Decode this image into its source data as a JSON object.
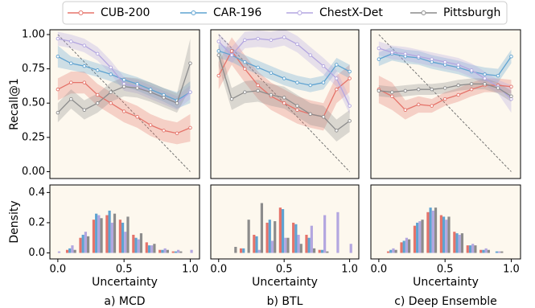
{
  "chart_data": [
    {
      "type": "line",
      "ylabel": "Recall@1",
      "x": [
        0.0,
        0.1,
        0.2,
        0.3,
        0.4,
        0.5,
        0.6,
        0.7,
        0.8,
        0.9,
        1.0
      ],
      "xlim": [
        -0.06,
        1.07
      ],
      "ylim": [
        -0.05,
        1.035
      ],
      "yticks": [
        {
          "value": 0,
          "label": "0.00"
        },
        {
          "value": 0.25,
          "label": "0.25"
        },
        {
          "value": 0.5,
          "label": "0.50"
        },
        {
          "value": 0.75,
          "label": "0.75"
        },
        {
          "value": 1,
          "label": "1.00"
        }
      ],
      "reference_line": {
        "x": [
          0,
          1
        ],
        "y": [
          1,
          0
        ]
      },
      "series": [
        {
          "name": "CUB-200",
          "color": "#e5736a",
          "values": [
            0.6,
            0.65,
            0.65,
            0.56,
            0.5,
            0.44,
            0.4,
            0.34,
            0.3,
            0.28,
            0.32
          ],
          "lower": [
            0.52,
            0.57,
            0.57,
            0.48,
            0.42,
            0.36,
            0.32,
            0.26,
            0.22,
            0.2,
            0.22
          ],
          "upper": [
            0.68,
            0.73,
            0.73,
            0.64,
            0.58,
            0.52,
            0.48,
            0.42,
            0.38,
            0.36,
            0.42
          ]
        },
        {
          "name": "CAR-196",
          "color": "#5fa3d1",
          "values": [
            0.84,
            0.79,
            0.77,
            0.74,
            0.71,
            0.67,
            0.64,
            0.6,
            0.56,
            0.52,
            0.58
          ],
          "lower": [
            0.76,
            0.74,
            0.72,
            0.69,
            0.66,
            0.62,
            0.59,
            0.55,
            0.51,
            0.46,
            0.5
          ],
          "upper": [
            0.92,
            0.84,
            0.82,
            0.79,
            0.76,
            0.72,
            0.69,
            0.65,
            0.61,
            0.58,
            0.66
          ]
        },
        {
          "name": "ChestX-Det",
          "color": "#b3a6e0",
          "values": [
            0.97,
            0.95,
            0.92,
            0.86,
            0.76,
            0.64,
            0.62,
            0.58,
            0.54,
            0.5,
            0.58
          ],
          "lower": [
            0.92,
            0.9,
            0.87,
            0.81,
            0.71,
            0.59,
            0.57,
            0.53,
            0.49,
            0.45,
            0.53
          ],
          "upper": [
            1.02,
            1.0,
            0.97,
            0.91,
            0.81,
            0.69,
            0.67,
            0.63,
            0.59,
            0.55,
            0.63
          ]
        },
        {
          "name": "Pittsburgh",
          "color": "#8c8c8c",
          "values": [
            0.43,
            0.53,
            0.45,
            0.5,
            0.58,
            0.62,
            0.61,
            0.58,
            0.54,
            0.5,
            0.79
          ],
          "lower": [
            0.36,
            0.46,
            0.38,
            0.43,
            0.51,
            0.55,
            0.54,
            0.51,
            0.47,
            0.43,
            0.61
          ],
          "upper": [
            0.5,
            0.6,
            0.52,
            0.57,
            0.65,
            0.69,
            0.68,
            0.65,
            0.61,
            0.57,
            0.97
          ]
        }
      ]
    },
    {
      "type": "line",
      "x": [
        0.0,
        0.1,
        0.2,
        0.3,
        0.4,
        0.5,
        0.6,
        0.7,
        0.8,
        0.9,
        1.0
      ],
      "xlim": [
        -0.06,
        1.07
      ],
      "ylim": [
        -0.05,
        1.035
      ],
      "reference_line": {
        "x": [
          0,
          1
        ],
        "y": [
          1,
          0
        ]
      },
      "series": [
        {
          "name": "CUB-200",
          "color": "#e5736a",
          "values": [
            0.7,
            0.88,
            0.75,
            0.63,
            0.55,
            0.5,
            0.45,
            0.42,
            0.4,
            0.6,
            0.68
          ],
          "lower": [
            0.6,
            0.78,
            0.65,
            0.53,
            0.45,
            0.4,
            0.35,
            0.32,
            0.3,
            0.5,
            0.58
          ],
          "upper": [
            0.8,
            0.98,
            0.85,
            0.73,
            0.65,
            0.6,
            0.55,
            0.52,
            0.5,
            0.7,
            0.78
          ]
        },
        {
          "name": "CAR-196",
          "color": "#5fa3d1",
          "values": [
            0.88,
            0.85,
            0.8,
            0.76,
            0.72,
            0.68,
            0.65,
            0.63,
            0.65,
            0.78,
            0.73
          ],
          "lower": [
            0.83,
            0.8,
            0.75,
            0.71,
            0.67,
            0.63,
            0.6,
            0.58,
            0.6,
            0.73,
            0.68
          ],
          "upper": [
            0.93,
            0.9,
            0.85,
            0.81,
            0.77,
            0.73,
            0.7,
            0.68,
            0.7,
            0.83,
            0.78
          ]
        },
        {
          "name": "ChestX-Det",
          "color": "#b3a6e0",
          "values": [
            0.95,
            0.85,
            0.96,
            0.97,
            0.96,
            0.98,
            0.93,
            0.85,
            0.77,
            0.68,
            0.48
          ],
          "lower": [
            0.89,
            0.79,
            0.9,
            0.91,
            0.9,
            0.92,
            0.87,
            0.79,
            0.71,
            0.62,
            0.42
          ],
          "upper": [
            1.01,
            0.91,
            1.02,
            1.03,
            1.02,
            1.04,
            0.99,
            0.91,
            0.83,
            0.74,
            0.54
          ]
        },
        {
          "name": "Pittsburgh",
          "color": "#8c8c8c",
          "values": [
            0.85,
            0.53,
            0.58,
            0.59,
            0.56,
            0.54,
            0.48,
            0.42,
            0.4,
            0.3,
            0.37
          ],
          "lower": [
            0.77,
            0.45,
            0.5,
            0.51,
            0.48,
            0.46,
            0.4,
            0.34,
            0.32,
            0.22,
            0.29
          ],
          "upper": [
            0.93,
            0.61,
            0.66,
            0.67,
            0.64,
            0.62,
            0.56,
            0.5,
            0.48,
            0.38,
            0.45
          ]
        }
      ]
    },
    {
      "type": "line",
      "x": [
        0.0,
        0.1,
        0.2,
        0.3,
        0.4,
        0.5,
        0.6,
        0.7,
        0.8,
        0.9,
        1.0
      ],
      "xlim": [
        -0.06,
        1.07
      ],
      "ylim": [
        -0.05,
        1.035
      ],
      "reference_line": {
        "x": [
          0,
          1
        ],
        "y": [
          1,
          0
        ]
      },
      "series": [
        {
          "name": "CUB-200",
          "color": "#e5736a",
          "values": [
            0.6,
            0.55,
            0.45,
            0.49,
            0.48,
            0.53,
            0.56,
            0.6,
            0.63,
            0.63,
            0.62
          ],
          "lower": [
            0.5,
            0.45,
            0.38,
            0.43,
            0.43,
            0.48,
            0.51,
            0.55,
            0.58,
            0.58,
            0.57
          ],
          "upper": [
            0.7,
            0.65,
            0.52,
            0.55,
            0.53,
            0.58,
            0.61,
            0.65,
            0.68,
            0.68,
            0.67
          ]
        },
        {
          "name": "CAR-196",
          "color": "#5fa3d1",
          "values": [
            0.82,
            0.86,
            0.84,
            0.83,
            0.8,
            0.78,
            0.76,
            0.73,
            0.71,
            0.7,
            0.84
          ],
          "lower": [
            0.77,
            0.81,
            0.79,
            0.78,
            0.75,
            0.73,
            0.71,
            0.68,
            0.66,
            0.65,
            0.79
          ],
          "upper": [
            0.87,
            0.91,
            0.89,
            0.88,
            0.85,
            0.83,
            0.81,
            0.78,
            0.76,
            0.75,
            0.89
          ]
        },
        {
          "name": "ChestX-Det",
          "color": "#b3a6e0",
          "values": [
            0.9,
            0.87,
            0.86,
            0.84,
            0.82,
            0.8,
            0.78,
            0.74,
            0.68,
            0.62,
            0.53
          ],
          "lower": [
            0.85,
            0.82,
            0.81,
            0.79,
            0.77,
            0.75,
            0.73,
            0.69,
            0.63,
            0.57,
            0.43
          ],
          "upper": [
            0.95,
            0.92,
            0.91,
            0.89,
            0.87,
            0.85,
            0.83,
            0.79,
            0.73,
            0.67,
            0.63
          ]
        },
        {
          "name": "Pittsburgh",
          "color": "#8c8c8c",
          "values": [
            0.59,
            0.58,
            0.59,
            0.6,
            0.6,
            0.61,
            0.63,
            0.64,
            0.64,
            0.61,
            0.55
          ],
          "lower": [
            0.55,
            0.54,
            0.55,
            0.56,
            0.56,
            0.57,
            0.59,
            0.6,
            0.6,
            0.57,
            0.51
          ],
          "upper": [
            0.63,
            0.62,
            0.63,
            0.64,
            0.64,
            0.65,
            0.67,
            0.68,
            0.68,
            0.65,
            0.59
          ]
        }
      ]
    },
    {
      "type": "bar",
      "ylabel": "Density",
      "xlabel": "Uncertainty",
      "caption": "a) MCD",
      "x": [
        0.0,
        0.1,
        0.2,
        0.3,
        0.4,
        0.5,
        0.6,
        0.7,
        0.8,
        0.9,
        1.0
      ],
      "xlim": [
        -0.06,
        1.07
      ],
      "ylim": [
        -0.04,
        0.45
      ],
      "xticks": [
        {
          "value": 0,
          "label": "0.0"
        },
        {
          "value": 0.5,
          "label": "0.5"
        },
        {
          "value": 1,
          "label": "1.0"
        }
      ],
      "yticks": [
        {
          "value": 0,
          "label": "0.0"
        },
        {
          "value": 0.2,
          "label": "0.2"
        },
        {
          "value": 0.4,
          "label": "0.4"
        }
      ],
      "series": [
        {
          "name": "CUB-200",
          "color": "#e5736a",
          "values": [
            0.0,
            0.02,
            0.1,
            0.22,
            0.25,
            0.22,
            0.12,
            0.07,
            0.02,
            0.01,
            0.0
          ]
        },
        {
          "name": "CAR-196",
          "color": "#5fa3d1",
          "values": [
            0.0,
            0.03,
            0.12,
            0.26,
            0.28,
            0.2,
            0.1,
            0.05,
            0.02,
            0.01,
            0.0
          ]
        },
        {
          "name": "ChestX-Det",
          "color": "#b3a6e0",
          "values": [
            0.01,
            0.05,
            0.14,
            0.25,
            0.2,
            0.14,
            0.09,
            0.05,
            0.03,
            0.02,
            0.02
          ]
        },
        {
          "name": "Pittsburgh",
          "color": "#8c8c8c",
          "values": [
            0.0,
            0.02,
            0.11,
            0.23,
            0.26,
            0.24,
            0.13,
            0.06,
            0.02,
            0.01,
            0.0
          ]
        }
      ]
    },
    {
      "type": "bar",
      "xlabel": "Uncertainty",
      "caption": "b) BTL",
      "x": [
        0.0,
        0.1,
        0.2,
        0.3,
        0.4,
        0.5,
        0.6,
        0.7,
        0.8,
        0.9,
        1.0
      ],
      "xlim": [
        -0.06,
        1.07
      ],
      "ylim": [
        -0.04,
        0.45
      ],
      "xticks": [
        {
          "value": 0,
          "label": "0.0"
        },
        {
          "value": 0.5,
          "label": "0.5"
        },
        {
          "value": 1,
          "label": "1.0"
        }
      ],
      "series": [
        {
          "name": "CUB-200",
          "color": "#e5736a",
          "values": [
            0.0,
            0.0,
            0.03,
            0.12,
            0.2,
            0.3,
            0.2,
            0.12,
            0.02,
            0.0,
            0.0
          ]
        },
        {
          "name": "CAR-196",
          "color": "#5fa3d1",
          "values": [
            0.0,
            0.0,
            0.03,
            0.11,
            0.22,
            0.29,
            0.19,
            0.1,
            0.02,
            0.0,
            0.0
          ]
        },
        {
          "name": "ChestX-Det",
          "color": "#b3a6e0",
          "values": [
            0.0,
            0.0,
            0.0,
            0.02,
            0.08,
            0.1,
            0.12,
            0.18,
            0.25,
            0.27,
            0.06
          ]
        },
        {
          "name": "Pittsburgh",
          "color": "#8c8c8c",
          "values": [
            0.0,
            0.04,
            0.22,
            0.33,
            0.21,
            0.1,
            0.06,
            0.03,
            0.01,
            0.0,
            0.0
          ]
        }
      ]
    },
    {
      "type": "bar",
      "xlabel": "Uncertainty",
      "caption": "c) Deep Ensemble",
      "x": [
        0.0,
        0.1,
        0.2,
        0.3,
        0.4,
        0.5,
        0.6,
        0.7,
        0.8,
        0.9,
        1.0
      ],
      "xlim": [
        -0.06,
        1.07
      ],
      "ylim": [
        -0.04,
        0.45
      ],
      "xticks": [
        {
          "value": 0,
          "label": "0.0"
        },
        {
          "value": 0.5,
          "label": "0.5"
        },
        {
          "value": 1,
          "label": "1.0"
        }
      ],
      "series": [
        {
          "name": "CUB-200",
          "color": "#e5736a",
          "values": [
            0.0,
            0.01,
            0.07,
            0.18,
            0.27,
            0.25,
            0.14,
            0.05,
            0.02,
            0.0,
            0.0
          ]
        },
        {
          "name": "CAR-196",
          "color": "#5fa3d1",
          "values": [
            0.0,
            0.02,
            0.08,
            0.2,
            0.3,
            0.24,
            0.13,
            0.05,
            0.02,
            0.01,
            0.0
          ]
        },
        {
          "name": "ChestX-Det",
          "color": "#b3a6e0",
          "values": [
            0.0,
            0.03,
            0.1,
            0.21,
            0.28,
            0.22,
            0.12,
            0.06,
            0.03,
            0.01,
            0.0
          ]
        },
        {
          "name": "Pittsburgh",
          "color": "#8c8c8c",
          "values": [
            0.0,
            0.02,
            0.09,
            0.22,
            0.3,
            0.24,
            0.13,
            0.05,
            0.02,
            0.01,
            0.0
          ]
        }
      ]
    }
  ]
}
